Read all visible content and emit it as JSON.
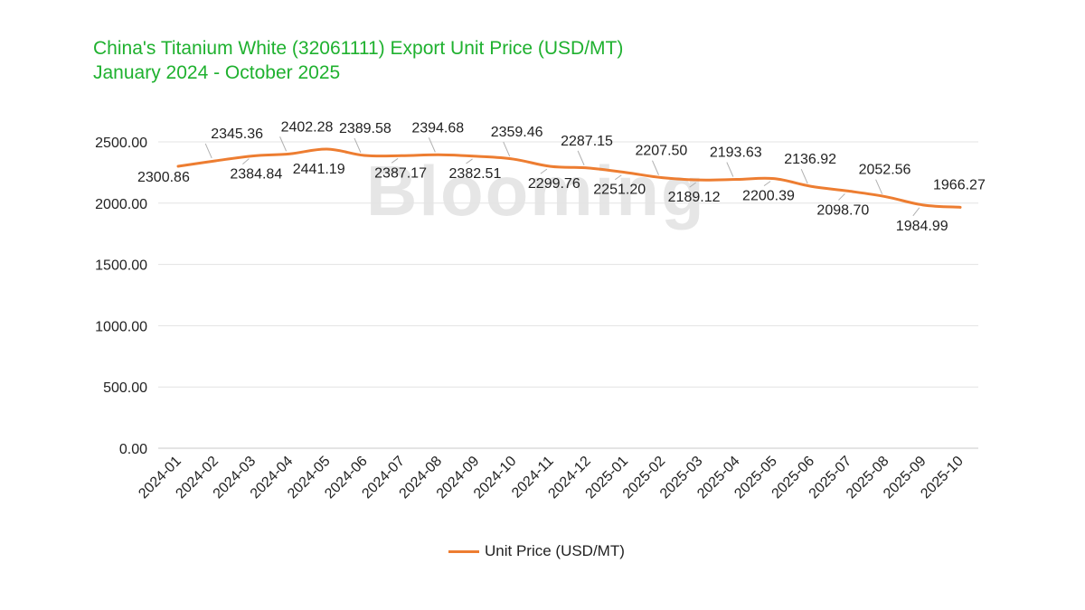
{
  "header": {
    "title_line1": "China's Titanium White (32061111) Export Unit Price (USD/MT)",
    "title_line2": "January 2024 - October 2025"
  },
  "watermark": "Blooming",
  "colors": {
    "series": "#ed7d31",
    "title": "#1fb12f",
    "grid": "#e3e3e3"
  },
  "chart_data": {
    "type": "line",
    "title": "China's Titanium White (32061111) Export Unit Price (USD/MT)",
    "subtitle": "January 2024 - October 2025",
    "categories": [
      "2024-01",
      "2024-02",
      "2024-03",
      "2024-04",
      "2024-05",
      "2024-06",
      "2024-07",
      "2024-08",
      "2024-09",
      "2024-10",
      "2024-11",
      "2024-12",
      "2025-01",
      "2025-02",
      "2025-03",
      "2025-04",
      "2025-05",
      "2025-06",
      "2025-07",
      "2025-08",
      "2025-09",
      "2025-10"
    ],
    "series": [
      {
        "name": "Unit Price (USD/MT)",
        "values": [
          2300.86,
          2345.36,
          2384.84,
          2402.28,
          2441.19,
          2389.58,
          2387.17,
          2394.68,
          2382.51,
          2359.46,
          2299.76,
          2287.15,
          2251.2,
          2207.5,
          2189.12,
          2193.63,
          2200.39,
          2136.92,
          2098.7,
          2052.56,
          1984.99,
          1966.27
        ]
      }
    ],
    "data_labels": [
      "2300.86",
      "2345.36",
      "2384.84",
      "2402.28",
      "2441.19",
      "2389.58",
      "2387.17",
      "2394.68",
      "2382.51",
      "2359.46",
      "2299.76",
      "2287.15",
      "2251.20",
      "2207.50",
      "2189.12",
      "2193.63",
      "2200.39",
      "2136.92",
      "2098.70",
      "2052.56",
      "1984.99",
      "1966.27"
    ],
    "y_ticks": [
      "0.00",
      "500.00",
      "1000.00",
      "1500.00",
      "2000.00",
      "2500.00"
    ],
    "ylim": [
      0,
      2500
    ],
    "grid": true,
    "legend_position": "bottom"
  }
}
